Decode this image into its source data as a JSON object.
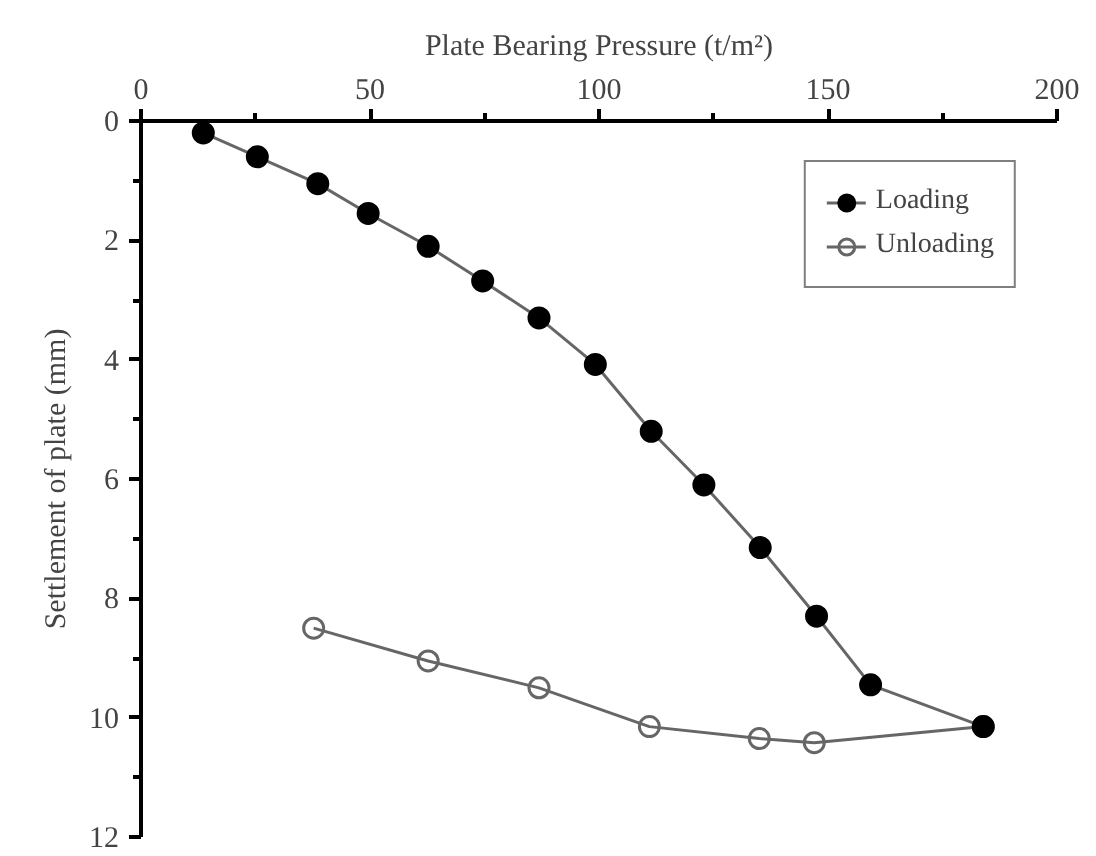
{
  "chart_data": {
    "type": "line",
    "xlabel": "Plate Bearing Pressure (t/m²)",
    "ylabel": "Settlement of plate (mm)",
    "xlim": [
      0,
      200
    ],
    "xticks": [
      0,
      50,
      100,
      150,
      200
    ],
    "ylim": [
      12,
      0
    ],
    "yticks": [
      0,
      2,
      4,
      6,
      8,
      10,
      12
    ],
    "grid": false,
    "legend": "top right",
    "line_style": "solid",
    "series": [
      {
        "name": "Loading",
        "color": "#000000",
        "marker": "circle",
        "x": [
          13.6,
          25.4,
          38.6,
          49.6,
          62.7,
          74.6,
          86.9,
          99.2,
          111.4,
          122.9,
          135.2,
          147.5,
          159.3,
          183.9
        ],
        "values": [
          0.2,
          0.6,
          1.05,
          1.55,
          2.1,
          2.68,
          3.3,
          4.08,
          5.2,
          6.1,
          7.15,
          8.3,
          9.45,
          10.15
        ]
      },
      {
        "name": "Unloading",
        "color": "#666666",
        "marker": "circle open",
        "x": [
          37.7,
          62.7,
          86.9,
          111.0,
          135.0,
          147.0,
          183.9
        ],
        "values": [
          8.5,
          9.05,
          9.5,
          10.15,
          10.35,
          10.42,
          10.15
        ]
      }
    ]
  }
}
